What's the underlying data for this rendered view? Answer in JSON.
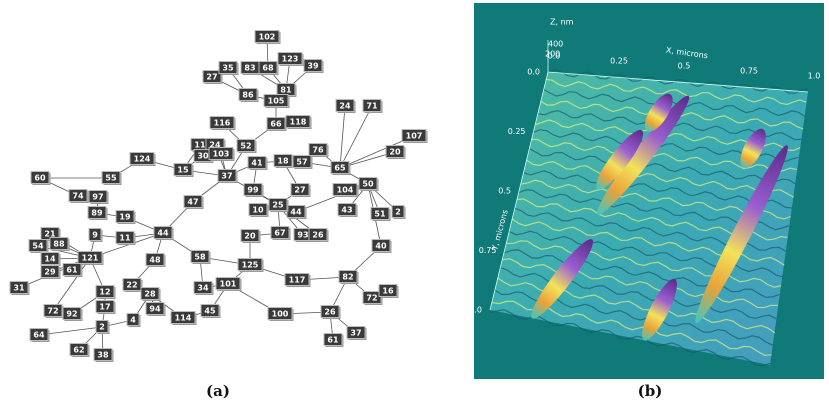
{
  "panel_a": {
    "caption": "(a)",
    "nodes": [
      "102",
      "27",
      "35",
      "83",
      "68",
      "123",
      "39",
      "86",
      "81",
      "105",
      "118",
      "66",
      "116",
      "52",
      "11",
      "24",
      "30",
      "103",
      "124",
      "15",
      "37",
      "41",
      "18",
      "57",
      "55",
      "60",
      "74",
      "97",
      "89",
      "19",
      "47",
      "9",
      "11",
      "44",
      "21",
      "54",
      "88",
      "14",
      "121",
      "29",
      "61",
      "48",
      "58",
      "20",
      "125",
      "31",
      "72",
      "92",
      "12",
      "17",
      "22",
      "28",
      "94",
      "34",
      "101",
      "45",
      "114",
      "4",
      "2",
      "64",
      "62",
      "38",
      "117",
      "100",
      "26",
      "82",
      "72",
      "16",
      "61",
      "37",
      "40",
      "24",
      "71",
      "107",
      "20",
      "50",
      "104",
      "43",
      "51",
      "2",
      "99",
      "27",
      "10",
      "44",
      "93",
      "26",
      "67",
      "25",
      "65",
      "76"
    ]
  },
  "panel_b": {
    "caption": "(b)",
    "z_axis_label": "Z, nm",
    "z_ticks": [
      "400",
      "200"
    ],
    "x_axis_label": "X, microns",
    "x_ticks": [
      "0.0",
      "0.25",
      "0.5",
      "0.75",
      "1.0"
    ],
    "y_axis_label": "Y, microns",
    "y_ticks": [
      "0.0",
      "0.25",
      "0.5",
      "0.75",
      "1.0"
    ]
  }
}
